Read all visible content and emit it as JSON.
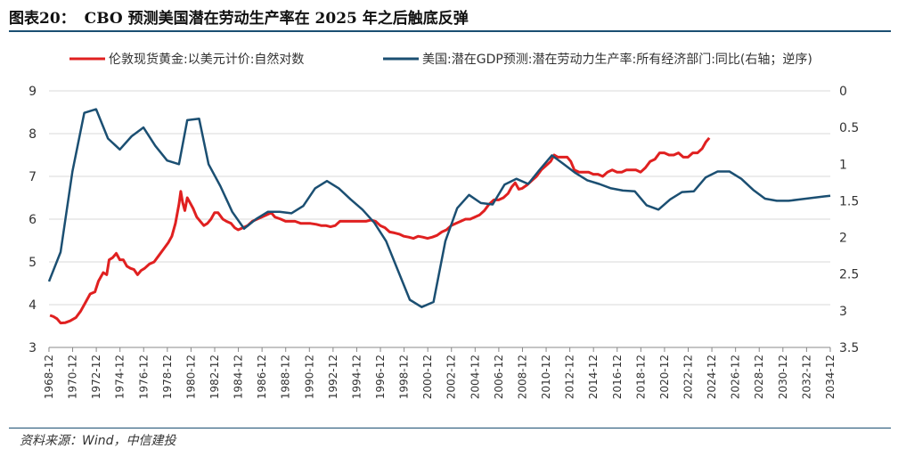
{
  "figure": {
    "label": "图表20：",
    "title": "CBO 预测美国潜在劳动生产率在 2025 年之后触底反弹",
    "source": "资料来源：Wind，中信建投"
  },
  "chart_data": {
    "type": "line",
    "xlim": [
      1968.92,
      2034.92
    ],
    "x_ticks": [
      "1968-12",
      "1970-12",
      "1972-12",
      "1974-12",
      "1976-12",
      "1978-12",
      "1980-12",
      "1982-12",
      "1984-12",
      "1986-12",
      "1988-12",
      "1990-12",
      "1992-12",
      "1994-12",
      "1996-12",
      "1998-12",
      "2000-12",
      "2002-12",
      "2004-12",
      "2006-12",
      "2008-12",
      "2010-12",
      "2012-12",
      "2014-12",
      "2016-12",
      "2018-12",
      "2020-12",
      "2022-12",
      "2024-12",
      "2026-12",
      "2028-12",
      "2030-12",
      "2032-12",
      "2034-12"
    ],
    "y_left": {
      "range": [
        3,
        9
      ],
      "ticks": [
        "3",
        "4",
        "5",
        "6",
        "7",
        "8",
        "9"
      ]
    },
    "y_right": {
      "range": [
        0,
        3.5
      ],
      "inverted": true,
      "ticks": [
        "0",
        "0.5",
        "1",
        "1.5",
        "2",
        "2.5",
        "3",
        "3.5"
      ]
    },
    "grid": "horizontal",
    "legend_position": "top",
    "series": [
      {
        "name": "伦敦现货黄金:以美元计价:自然对数",
        "axis": "left",
        "color": "#e02020",
        "points": [
          [
            1969.0,
            3.75
          ],
          [
            1969.3,
            3.72
          ],
          [
            1969.6,
            3.67
          ],
          [
            1969.9,
            3.57
          ],
          [
            1970.3,
            3.58
          ],
          [
            1970.7,
            3.62
          ],
          [
            1971.2,
            3.7
          ],
          [
            1971.6,
            3.85
          ],
          [
            1972.0,
            4.05
          ],
          [
            1972.4,
            4.25
          ],
          [
            1972.8,
            4.3
          ],
          [
            1973.1,
            4.55
          ],
          [
            1973.5,
            4.75
          ],
          [
            1973.8,
            4.7
          ],
          [
            1974.0,
            5.05
          ],
          [
            1974.3,
            5.1
          ],
          [
            1974.6,
            5.2
          ],
          [
            1974.9,
            5.05
          ],
          [
            1975.2,
            5.05
          ],
          [
            1975.5,
            4.9
          ],
          [
            1975.8,
            4.85
          ],
          [
            1976.1,
            4.82
          ],
          [
            1976.4,
            4.7
          ],
          [
            1976.7,
            4.8
          ],
          [
            1977.0,
            4.85
          ],
          [
            1977.4,
            4.95
          ],
          [
            1977.8,
            5.0
          ],
          [
            1978.2,
            5.15
          ],
          [
            1978.6,
            5.3
          ],
          [
            1979.0,
            5.45
          ],
          [
            1979.3,
            5.6
          ],
          [
            1979.6,
            5.9
          ],
          [
            1979.9,
            6.35
          ],
          [
            1980.05,
            6.65
          ],
          [
            1980.2,
            6.4
          ],
          [
            1980.4,
            6.2
          ],
          [
            1980.6,
            6.5
          ],
          [
            1980.8,
            6.4
          ],
          [
            1981.1,
            6.25
          ],
          [
            1981.4,
            6.05
          ],
          [
            1981.7,
            5.95
          ],
          [
            1982.0,
            5.85
          ],
          [
            1982.3,
            5.9
          ],
          [
            1982.6,
            6.0
          ],
          [
            1982.9,
            6.15
          ],
          [
            1983.2,
            6.15
          ],
          [
            1983.6,
            6.0
          ],
          [
            1983.9,
            5.95
          ],
          [
            1984.3,
            5.9
          ],
          [
            1984.6,
            5.8
          ],
          [
            1984.9,
            5.75
          ],
          [
            1985.3,
            5.8
          ],
          [
            1985.7,
            5.85
          ],
          [
            1986.1,
            5.95
          ],
          [
            1986.5,
            6.0
          ],
          [
            1986.9,
            6.05
          ],
          [
            1987.3,
            6.1
          ],
          [
            1987.7,
            6.15
          ],
          [
            1988.0,
            6.05
          ],
          [
            1988.5,
            6.0
          ],
          [
            1988.9,
            5.95
          ],
          [
            1989.3,
            5.95
          ],
          [
            1989.7,
            5.95
          ],
          [
            1990.2,
            5.9
          ],
          [
            1990.6,
            5.9
          ],
          [
            1991.0,
            5.9
          ],
          [
            1991.5,
            5.88
          ],
          [
            1991.9,
            5.85
          ],
          [
            1992.3,
            5.85
          ],
          [
            1992.7,
            5.82
          ],
          [
            1993.1,
            5.85
          ],
          [
            1993.5,
            5.95
          ],
          [
            1993.9,
            5.95
          ],
          [
            1994.4,
            5.95
          ],
          [
            1994.8,
            5.95
          ],
          [
            1995.3,
            5.95
          ],
          [
            1995.7,
            5.95
          ],
          [
            1996.1,
            5.98
          ],
          [
            1996.5,
            5.95
          ],
          [
            1996.9,
            5.85
          ],
          [
            1997.3,
            5.8
          ],
          [
            1997.7,
            5.7
          ],
          [
            1998.1,
            5.68
          ],
          [
            1998.5,
            5.65
          ],
          [
            1998.9,
            5.6
          ],
          [
            1999.3,
            5.58
          ],
          [
            1999.7,
            5.55
          ],
          [
            2000.1,
            5.6
          ],
          [
            2000.5,
            5.58
          ],
          [
            2000.9,
            5.55
          ],
          [
            2001.3,
            5.58
          ],
          [
            2001.7,
            5.62
          ],
          [
            2002.1,
            5.7
          ],
          [
            2002.5,
            5.75
          ],
          [
            2002.9,
            5.85
          ],
          [
            2003.3,
            5.9
          ],
          [
            2003.7,
            5.95
          ],
          [
            2004.1,
            6.0
          ],
          [
            2004.5,
            6.0
          ],
          [
            2004.9,
            6.05
          ],
          [
            2005.3,
            6.1
          ],
          [
            2005.7,
            6.2
          ],
          [
            2006.1,
            6.35
          ],
          [
            2006.5,
            6.45
          ],
          [
            2006.9,
            6.45
          ],
          [
            2007.3,
            6.5
          ],
          [
            2007.7,
            6.6
          ],
          [
            2008.0,
            6.75
          ],
          [
            2008.3,
            6.85
          ],
          [
            2008.6,
            6.7
          ],
          [
            2008.9,
            6.72
          ],
          [
            2009.3,
            6.8
          ],
          [
            2009.7,
            6.9
          ],
          [
            2010.1,
            7.0
          ],
          [
            2010.5,
            7.15
          ],
          [
            2010.9,
            7.25
          ],
          [
            2011.3,
            7.35
          ],
          [
            2011.6,
            7.5
          ],
          [
            2011.9,
            7.45
          ],
          [
            2012.3,
            7.45
          ],
          [
            2012.7,
            7.45
          ],
          [
            2013.0,
            7.35
          ],
          [
            2013.3,
            7.15
          ],
          [
            2013.7,
            7.1
          ],
          [
            2014.1,
            7.1
          ],
          [
            2014.5,
            7.1
          ],
          [
            2014.9,
            7.05
          ],
          [
            2015.3,
            7.05
          ],
          [
            2015.7,
            7.0
          ],
          [
            2016.1,
            7.1
          ],
          [
            2016.5,
            7.15
          ],
          [
            2016.9,
            7.1
          ],
          [
            2017.3,
            7.1
          ],
          [
            2017.7,
            7.15
          ],
          [
            2018.1,
            7.15
          ],
          [
            2018.5,
            7.15
          ],
          [
            2018.9,
            7.1
          ],
          [
            2019.3,
            7.2
          ],
          [
            2019.7,
            7.35
          ],
          [
            2020.1,
            7.4
          ],
          [
            2020.5,
            7.55
          ],
          [
            2020.9,
            7.55
          ],
          [
            2021.3,
            7.5
          ],
          [
            2021.7,
            7.5
          ],
          [
            2022.1,
            7.55
          ],
          [
            2022.5,
            7.45
          ],
          [
            2022.9,
            7.45
          ],
          [
            2023.3,
            7.55
          ],
          [
            2023.7,
            7.55
          ],
          [
            2024.1,
            7.65
          ],
          [
            2024.4,
            7.8
          ],
          [
            2024.7,
            7.9
          ]
        ]
      },
      {
        "name": "美国:潜在GDP预测:潜在劳动力生产率:所有经济部门:同比(右轴；逆序)",
        "axis": "right",
        "color": "#1b4f72",
        "points": [
          [
            1968.92,
            2.6
          ],
          [
            1969.9,
            2.2
          ],
          [
            1970.9,
            1.1
          ],
          [
            1971.9,
            0.3
          ],
          [
            1972.9,
            0.25
          ],
          [
            1973.9,
            0.65
          ],
          [
            1974.9,
            0.8
          ],
          [
            1975.9,
            0.62
          ],
          [
            1976.9,
            0.5
          ],
          [
            1977.9,
            0.75
          ],
          [
            1978.9,
            0.95
          ],
          [
            1979.9,
            1.0
          ],
          [
            1980.6,
            0.4
          ],
          [
            1981.6,
            0.38
          ],
          [
            1982.4,
            1.0
          ],
          [
            1983.4,
            1.3
          ],
          [
            1984.4,
            1.65
          ],
          [
            1985.4,
            1.88
          ],
          [
            1986.4,
            1.75
          ],
          [
            1987.4,
            1.65
          ],
          [
            1988.4,
            1.65
          ],
          [
            1989.4,
            1.67
          ],
          [
            1990.4,
            1.57
          ],
          [
            1991.4,
            1.33
          ],
          [
            1992.4,
            1.23
          ],
          [
            1993.4,
            1.33
          ],
          [
            1994.4,
            1.48
          ],
          [
            1995.4,
            1.62
          ],
          [
            1996.4,
            1.8
          ],
          [
            1997.4,
            2.05
          ],
          [
            1998.4,
            2.45
          ],
          [
            1999.4,
            2.85
          ],
          [
            2000.4,
            2.95
          ],
          [
            2001.4,
            2.88
          ],
          [
            2002.4,
            2.05
          ],
          [
            2003.4,
            1.6
          ],
          [
            2004.4,
            1.42
          ],
          [
            2005.4,
            1.53
          ],
          [
            2006.4,
            1.55
          ],
          [
            2007.4,
            1.28
          ],
          [
            2008.4,
            1.2
          ],
          [
            2009.4,
            1.27
          ],
          [
            2010.4,
            1.07
          ],
          [
            2011.4,
            0.88
          ],
          [
            2012.4,
            1.0
          ],
          [
            2013.4,
            1.12
          ],
          [
            2014.4,
            1.22
          ],
          [
            2015.4,
            1.27
          ],
          [
            2016.4,
            1.33
          ],
          [
            2017.4,
            1.36
          ],
          [
            2018.4,
            1.37
          ],
          [
            2019.4,
            1.56
          ],
          [
            2020.4,
            1.62
          ],
          [
            2021.4,
            1.48
          ],
          [
            2022.4,
            1.38
          ],
          [
            2023.4,
            1.37
          ],
          [
            2024.4,
            1.18
          ],
          [
            2025.4,
            1.1
          ],
          [
            2026.4,
            1.1
          ],
          [
            2027.4,
            1.2
          ],
          [
            2028.4,
            1.35
          ],
          [
            2029.4,
            1.47
          ],
          [
            2030.4,
            1.5
          ],
          [
            2031.4,
            1.5
          ],
          [
            2032.4,
            1.48
          ],
          [
            2033.4,
            1.46
          ],
          [
            2034.4,
            1.44
          ],
          [
            2034.92,
            1.43
          ]
        ]
      }
    ]
  }
}
